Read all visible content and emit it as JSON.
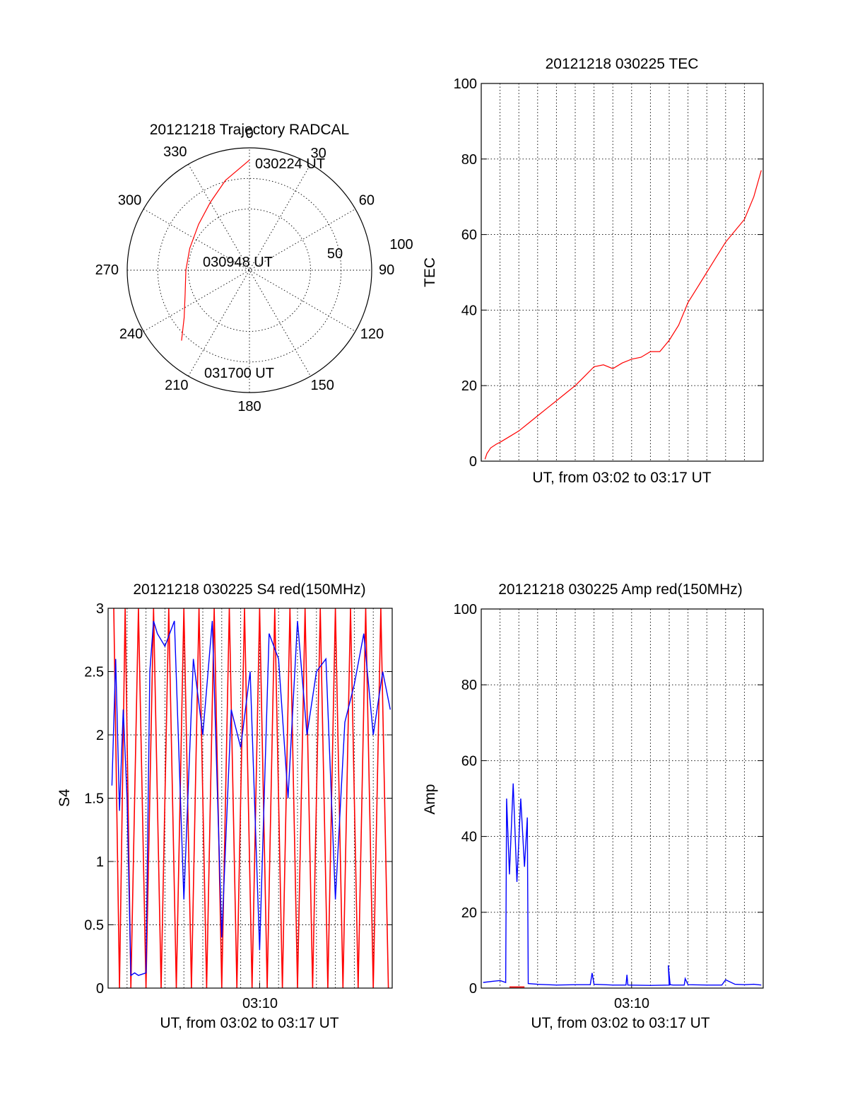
{
  "chart_data": [
    {
      "type": "polar",
      "title": "20121218 Trajectory RADCAL",
      "azimuth_labels": [
        "0",
        "30",
        "60",
        "90",
        "120",
        "150",
        "180",
        "210",
        "240",
        "270",
        "300",
        "330"
      ],
      "radial_labels": [
        "50",
        "100"
      ],
      "radial_range": [
        0,
        100
      ],
      "grid": true,
      "annotations": {
        "start": "030224 UT",
        "mid": "030948 UT",
        "end": "031700 UT"
      },
      "trajectory": {
        "color": "#ff0000",
        "points": [
          {
            "az": 0,
            "r": 90
          },
          {
            "az": 345,
            "r": 76
          },
          {
            "az": 330,
            "r": 64
          },
          {
            "az": 312,
            "r": 56
          },
          {
            "az": 290,
            "r": 52
          },
          {
            "az": 270,
            "r": 52
          },
          {
            "az": 250,
            "r": 56
          },
          {
            "az": 234,
            "r": 66
          },
          {
            "az": 224,
            "r": 80
          }
        ]
      }
    },
    {
      "type": "line",
      "title": "20121218 030225 TEC",
      "xlabel": "UT, from 03:02 to 03:17 UT",
      "ylabel": "TEC",
      "ylim": [
        0,
        100
      ],
      "yticks": [
        "0",
        "20",
        "40",
        "60",
        "80",
        "100"
      ],
      "xlim": [
        0,
        15
      ],
      "grid": true,
      "series": [
        {
          "color": "#ff0000",
          "x": [
            0.2,
            0.3,
            0.5,
            0.8,
            1.0,
            1.5,
            2.0,
            2.5,
            3.0,
            3.5,
            4.0,
            4.5,
            5.0,
            5.5,
            6.0,
            6.5,
            7.0,
            7.5,
            8.0,
            8.5,
            9.0,
            9.5,
            10.0,
            10.5,
            11.0,
            11.5,
            12.0,
            12.5,
            13.0,
            13.5,
            14.0,
            14.5,
            14.9
          ],
          "y": [
            0.5,
            2,
            3.5,
            4.5,
            5,
            6.5,
            8,
            10,
            12,
            14,
            16,
            18,
            20,
            22.5,
            25,
            25.5,
            24.5,
            26,
            27,
            27.5,
            29,
            29,
            32,
            36,
            42,
            46,
            50,
            54,
            58,
            61,
            64,
            70,
            77
          ]
        }
      ]
    },
    {
      "type": "line",
      "title": "20121218 030225 S4 red(150MHz)",
      "xlabel": "UT, from 03:02 to 03:17 UT",
      "ylabel": "S4",
      "ylim": [
        0,
        3
      ],
      "yticks": [
        "0",
        "0.5",
        "1",
        "1.5",
        "2",
        "2.5",
        "3"
      ],
      "xlim": [
        0,
        15
      ],
      "xticks": [
        {
          "x": 8,
          "label": "03:10"
        }
      ],
      "grid": true,
      "series": [
        {
          "color": "#ff0000",
          "x": [
            0.3,
            0.6,
            0.9,
            1.2,
            1.6,
            2.0,
            2.4,
            2.8,
            3.2,
            3.6,
            4.0,
            4.4,
            4.8,
            5.2,
            5.6,
            6.0,
            6.4,
            6.8,
            7.2,
            7.6,
            8.0,
            8.4,
            8.8,
            9.2,
            9.6,
            10.0,
            10.4,
            10.8,
            11.2,
            11.6,
            12.0,
            12.4,
            12.8,
            13.2,
            13.6,
            14.0,
            14.4,
            14.8
          ],
          "y": [
            3,
            0,
            3,
            0,
            3,
            0,
            3,
            0,
            3,
            0,
            3,
            0,
            3,
            0,
            3,
            0,
            3,
            0,
            3,
            0,
            3,
            0,
            3,
            0,
            3,
            0,
            3,
            0,
            3,
            0,
            3,
            0,
            3,
            0,
            3,
            0,
            3,
            0
          ]
        },
        {
          "color": "#0000ff",
          "x": [
            0.2,
            0.4,
            0.6,
            0.8,
            1.0,
            1.2,
            1.4,
            1.6,
            1.8,
            2.0,
            2.2,
            2.4,
            2.6,
            3.0,
            3.5,
            4.0,
            4.5,
            5.0,
            5.5,
            6.0,
            6.5,
            7.0,
            7.5,
            8.0,
            8.5,
            9.0,
            9.5,
            10.0,
            10.5,
            11.0,
            11.5,
            12.0,
            12.5,
            13.0,
            13.5,
            14.0,
            14.5,
            14.9
          ],
          "y": [
            1.6,
            2.6,
            1.4,
            2.2,
            1.5,
            0.1,
            0.12,
            0.1,
            0.11,
            0.12,
            2.5,
            2.9,
            2.8,
            2.7,
            2.9,
            0.7,
            2.6,
            2.0,
            2.9,
            0.4,
            2.2,
            1.9,
            2.5,
            0.3,
            2.8,
            2.6,
            1.5,
            2.9,
            2.0,
            2.5,
            2.6,
            0.7,
            2.1,
            2.4,
            2.8,
            2.0,
            2.5,
            2.2
          ]
        }
      ]
    },
    {
      "type": "line",
      "title": "20121218 030225 Amp red(150MHz)",
      "xlabel": "UT, from 03:02 to 03:17 UT",
      "ylabel": "Amp",
      "ylim": [
        0,
        100
      ],
      "yticks": [
        "0",
        "20",
        "40",
        "60",
        "80",
        "100"
      ],
      "xlim": [
        0,
        15
      ],
      "xticks": [
        {
          "x": 8,
          "label": "03:10"
        }
      ],
      "grid": true,
      "series": [
        {
          "color": "#0000ff",
          "x": [
            0.1,
            0.6,
            1.0,
            1.3,
            1.35,
            1.5,
            1.7,
            1.9,
            2.1,
            2.3,
            2.45,
            2.5,
            3.0,
            4.0,
            5.0,
            5.8,
            5.9,
            6.0,
            7.0,
            7.7,
            7.75,
            7.8,
            9.0,
            10.0,
            9.95,
            10.05,
            10.2,
            10.8,
            10.85,
            11.0,
            12.0,
            12.8,
            13.0,
            13.5,
            14.0,
            14.5,
            14.9
          ],
          "y": [
            1.5,
            1.8,
            2.0,
            1.5,
            50,
            30,
            54,
            28,
            50,
            32,
            45,
            1.2,
            1.0,
            0.8,
            0.9,
            0.9,
            4,
            1.0,
            0.8,
            0.8,
            3.5,
            0.8,
            0.7,
            0.8,
            6,
            0.9,
            0.8,
            0.8,
            2.5,
            0.9,
            0.8,
            0.8,
            2.2,
            1.0,
            0.9,
            1.0,
            0.8
          ]
        },
        {
          "color": "#ff0000",
          "x": [
            1.5,
            2.3
          ],
          "y": [
            0.3,
            0.3
          ]
        }
      ]
    }
  ]
}
